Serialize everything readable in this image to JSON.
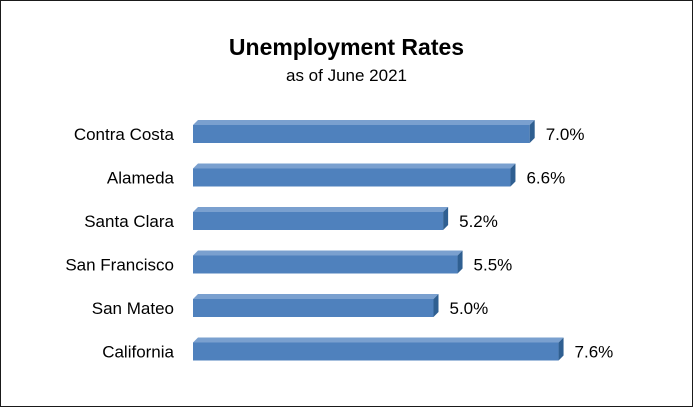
{
  "chart_data": {
    "type": "bar",
    "orientation": "horizontal",
    "title": "Unemployment Rates",
    "subtitle": "as of June 2021",
    "categories": [
      "Contra Costa",
      "Alameda",
      "Santa Clara",
      "San Francisco",
      "San Mateo",
      "California"
    ],
    "values": [
      7.0,
      6.6,
      5.2,
      5.5,
      5.0,
      7.6
    ],
    "data_labels": [
      "7.0%",
      "6.6%",
      "5.2%",
      "5.5%",
      "5.0%",
      "7.6%"
    ],
    "xlim": [
      0,
      8
    ],
    "grid": false,
    "legend": "none",
    "bar_style": "3d",
    "colors": {
      "bar_face": "#4f81bd",
      "bar_top": "#7aa0cf",
      "bar_side": "#2f5f91"
    }
  }
}
